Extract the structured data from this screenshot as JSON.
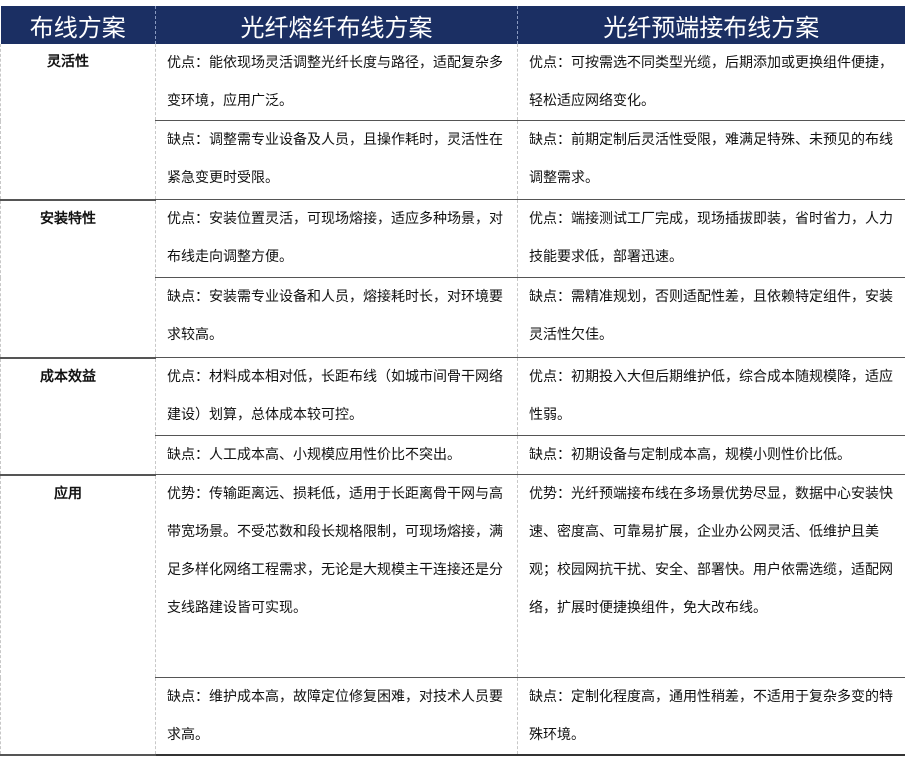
{
  "header": [
    "布线方案",
    "光纤熔纤布线方案",
    "光纤预端接布线方案"
  ],
  "rows": [
    {
      "category": "灵活性",
      "fusion": [
        "优点：能依现场灵活调整光纤长度与路径，适配复杂多变环境，应用广泛。",
        "缺点：调整需专业设备及人员，且操作耗时，灵活性在紧急变更时受限。"
      ],
      "preterm": [
        "优点：可按需选不同类型光缆，后期添加或更换组件便捷，轻松适应网络变化。",
        "缺点：前期定制后灵活性受限，难满足特殊、未预见的布线调整需求。"
      ]
    },
    {
      "category": "安装特性",
      "fusion": [
        "优点：安装位置灵活，可现场熔接，适应多种场景，对布线走向调整方便。",
        "缺点：安装需专业设备和人员，熔接耗时长，对环境要求较高。"
      ],
      "preterm": [
        "优点：端接测试工厂完成，现场插拔即装，省时省力，人力技能要求低，部署迅速。",
        "缺点：需精准规划，否则适配性差，且依赖特定组件，安装灵活性欠佳。"
      ]
    },
    {
      "category": "成本效益",
      "fusion": [
        "优点：材料成本相对低，长距布线（如城市间骨干网络建设）划算，总体成本较可控。",
        "缺点：人工成本高、小规模应用性价比不突出。"
      ],
      "preterm": [
        "优点：初期投入大但后期维护低，综合成本随规模降，适应性弱。",
        "缺点：初期设备与定制成本高，规模小则性价比低。"
      ]
    },
    {
      "category": "应用",
      "fusion": [
        "优势：传输距离远、损耗低，适用于长距离骨干网与高带宽场景。不受芯数和段长规格限制，可现场熔接，满足多样化网络工程需求，无论是大规模主干连接还是分支线路建设皆可实现。",
        "缺点：维护成本高，故障定位修复困难，对技术人员要求高。"
      ],
      "preterm": [
        "优势：光纤预端接布线在多场景优势尽显，数据中心安装快速、密度高、可靠易扩展，企业办公网灵活、低维护且美观；校园网抗干扰、安全、部署快。用户依需选缆，适配网络，扩展时便捷换组件，免大改布线。",
        "缺点：定制化程度高，通用性稍差，不适用于复杂多变的特殊环境。"
      ]
    }
  ]
}
